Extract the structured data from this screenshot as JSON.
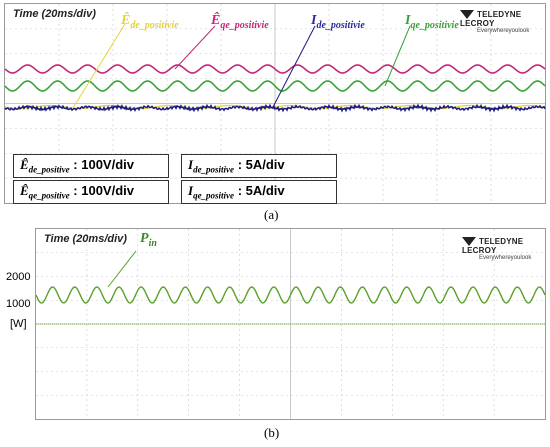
{
  "panel_a": {
    "timebase": "Time (20ms/div)",
    "logo": {
      "brand": "TELEDYNE LECROY",
      "tagline": "Everywhereyoulook"
    },
    "labels": {
      "ed": {
        "sym": "Ê",
        "sub": "de_positivie",
        "color": "#e8d23a"
      },
      "eq": {
        "sym": "Ê",
        "sub": "qe_positivie",
        "color": "#c0287a"
      },
      "id": {
        "sym": "I",
        "sub": "de_positivie",
        "color": "#2a2aa0"
      },
      "iq": {
        "sym": "I",
        "sub": "qe_positivie",
        "color": "#3aa03a"
      }
    },
    "scales": [
      {
        "sym": "Ê",
        "sub": "de_positive",
        "value": ": 100V/div"
      },
      {
        "sym": "I",
        "sub": "de_positive",
        "value": ": 5A/div"
      },
      {
        "sym": "Ê",
        "sub": "qe_positive",
        "value": ": 100V/div"
      },
      {
        "sym": "I",
        "sub": "qe_positive",
        "value": ": 5A/div"
      }
    ],
    "caption": "(a)"
  },
  "panel_b": {
    "timebase": "Time (20ms/div)",
    "logo": {
      "brand": "TELEDYNE LECROY",
      "tagline": "Everywhereyoulook"
    },
    "label": {
      "sym": "P",
      "sub": "in",
      "color": "#3a8a2a"
    },
    "y_ticks": [
      "2000",
      "1000",
      "[W]"
    ],
    "caption": "(b)"
  },
  "colors": {
    "grid": "#c8c8c8",
    "magenta": "#c0287a",
    "green": "#3aa03a",
    "navy": "#1a1a80",
    "yellow": "#e8d23a",
    "pin": "#5aa02a"
  }
}
